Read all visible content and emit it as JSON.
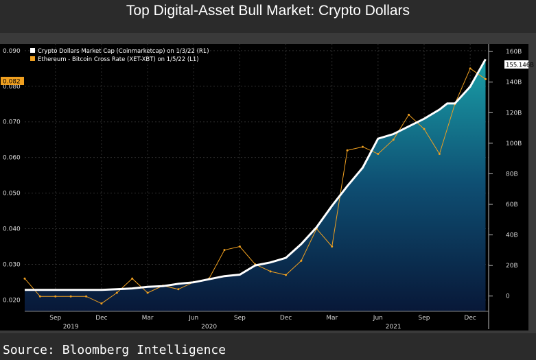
{
  "title": "Top Digital-Asset Bull Market: Crypto Dollars",
  "source": "Source: Bloomberg Intelligence",
  "chart_data": {
    "type": "line",
    "x_range": [
      "2019-07-01",
      "2022-01-07"
    ],
    "legend": [
      {
        "label": "Crypto Dollars Market Cap (Coinmarketcap) on 1/3/22 (R1)",
        "color": "#ffffff"
      },
      {
        "label": "Ethereum - Bitcoin Cross Rate (XET-XBT) on 1/5/22 (L1)",
        "color": "#f0a020"
      }
    ],
    "left_axis": {
      "ticks": [
        "0.020",
        "0.030",
        "0.040",
        "0.050",
        "0.060",
        "0.070",
        "0.080",
        "0.090"
      ],
      "range": [
        0.0168,
        0.0919
      ],
      "last_label": "0.082",
      "last_value": 0.082
    },
    "right_axis": {
      "ticks": [
        "0",
        "20B",
        "40B",
        "60B",
        "80B",
        "100B",
        "120B",
        "140B",
        "160B"
      ],
      "range": [
        -10,
        165
      ],
      "last_label": "155.146B",
      "last_value": 155.146
    },
    "x_month_labels": [
      "Sep",
      "Dec",
      "Mar",
      "Jun",
      "Sep",
      "Dec",
      "Mar",
      "Jun",
      "Sep",
      "Dec"
    ],
    "x_year_labels": [
      "2019",
      "2020",
      "2021"
    ],
    "x_month_positions": [
      2,
      5,
      8,
      11,
      14,
      17,
      20,
      23,
      26,
      29
    ],
    "x_year_positions": [
      3,
      12,
      24
    ],
    "market_cap_series": {
      "name": "Crypto Dollars Market Cap",
      "x": [
        0,
        2,
        4,
        5,
        6,
        7,
        8,
        9,
        10,
        11,
        12,
        13,
        14,
        15,
        16,
        17,
        18,
        19,
        20,
        21,
        22,
        23,
        24,
        25,
        26,
        27,
        27.5,
        28,
        29,
        29.5,
        30
      ],
      "values": [
        4,
        4,
        4,
        4,
        4.5,
        5,
        6,
        6.5,
        8,
        9,
        11,
        13,
        14,
        20,
        22,
        25,
        34,
        45,
        59,
        72,
        84,
        103,
        106,
        111,
        116,
        122,
        126,
        126,
        137,
        146,
        155
      ]
    },
    "eth_btc_series": {
      "name": "Ethereum - Bitcoin Cross Rate",
      "x": [
        0,
        1,
        2,
        3,
        4,
        5,
        6,
        7,
        8,
        9,
        10,
        11,
        12,
        13,
        14,
        15,
        16,
        17,
        18,
        19,
        20,
        21,
        22,
        23,
        24,
        25,
        26,
        27,
        28,
        29,
        30
      ],
      "values": [
        0.026,
        0.021,
        0.021,
        0.021,
        0.021,
        0.019,
        0.022,
        0.026,
        0.022,
        0.024,
        0.023,
        0.025,
        0.026,
        0.034,
        0.035,
        0.03,
        0.028,
        0.027,
        0.031,
        0.04,
        0.035,
        0.062,
        0.063,
        0.061,
        0.065,
        0.072,
        0.068,
        0.061,
        0.075,
        0.085,
        0.082
      ]
    }
  }
}
